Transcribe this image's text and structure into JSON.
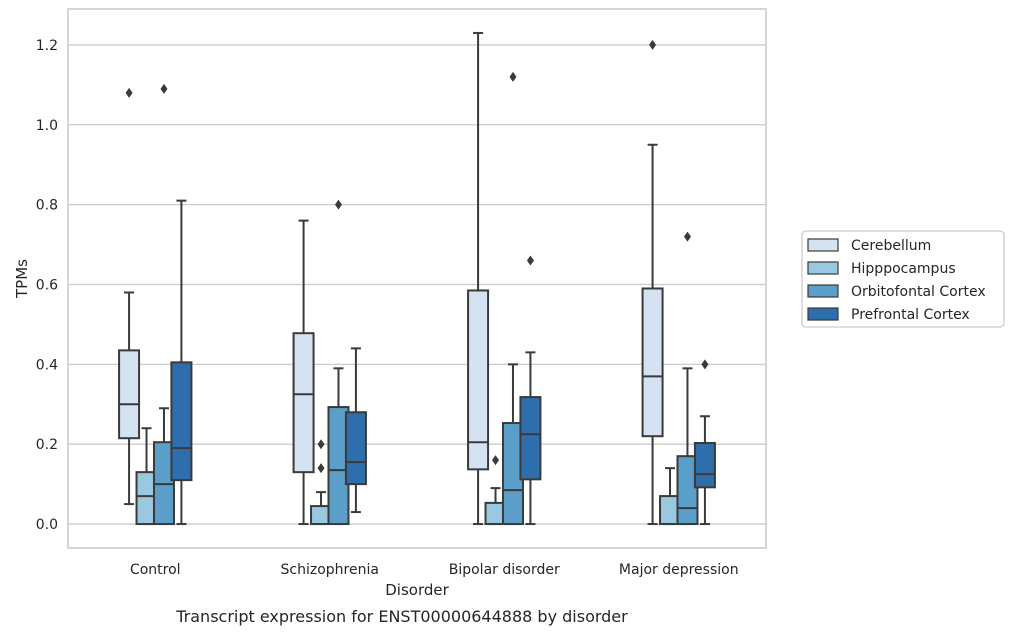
{
  "chart_data": {
    "type": "box",
    "title": "",
    "caption": "Transcript expression for ENST00000644888 by disorder",
    "xlabel": "Disorder",
    "ylabel": "TPMs",
    "ylim": [
      -0.06,
      1.29
    ],
    "yticks": [
      0.0,
      0.2,
      0.4,
      0.6,
      0.8,
      1.0,
      1.2
    ],
    "ytick_labels": [
      "0.0",
      "0.2",
      "0.4",
      "0.6",
      "0.8",
      "1.0",
      "1.2"
    ],
    "grid": "horizontal",
    "legend_position": "right",
    "categories": [
      "Control",
      "Schizophrenia",
      "Bipolar disorder",
      "Major depression"
    ],
    "series": [
      {
        "name": "Cerebellum",
        "color": "#d4e2f1",
        "boxes": [
          {
            "whisker_low": 0.05,
            "q1": 0.215,
            "median": 0.3,
            "q3": 0.435,
            "whisker_high": 0.58,
            "outliers": [
              1.08
            ]
          },
          {
            "whisker_low": 0.0,
            "q1": 0.13,
            "median": 0.325,
            "q3": 0.478,
            "whisker_high": 0.76,
            "outliers": []
          },
          {
            "whisker_low": 0.0,
            "q1": 0.137,
            "median": 0.205,
            "q3": 0.585,
            "whisker_high": 1.23,
            "outliers": []
          },
          {
            "whisker_low": 0.0,
            "q1": 0.22,
            "median": 0.37,
            "q3": 0.59,
            "whisker_high": 0.95,
            "outliers": [
              1.2
            ]
          }
        ]
      },
      {
        "name": "Hipppocampus",
        "color": "#9ac8e0",
        "boxes": [
          {
            "whisker_low": 0.0,
            "q1": 0.0,
            "median": 0.07,
            "q3": 0.13,
            "whisker_high": 0.24,
            "outliers": []
          },
          {
            "whisker_low": 0.0,
            "q1": 0.0,
            "median": 0.0,
            "q3": 0.045,
            "whisker_high": 0.08,
            "outliers": [
              0.14,
              0.2
            ]
          },
          {
            "whisker_low": 0.0,
            "q1": 0.0,
            "median": 0.0,
            "q3": 0.053,
            "whisker_high": 0.09,
            "outliers": [
              0.16
            ]
          },
          {
            "whisker_low": 0.0,
            "q1": 0.0,
            "median": 0.0,
            "q3": 0.07,
            "whisker_high": 0.14,
            "outliers": []
          }
        ]
      },
      {
        "name": "Orbitofontal Cortex",
        "color": "#5a9ec9",
        "boxes": [
          {
            "whisker_low": 0.0,
            "q1": 0.0,
            "median": 0.1,
            "q3": 0.205,
            "whisker_high": 0.29,
            "outliers": [
              1.09
            ]
          },
          {
            "whisker_low": 0.0,
            "q1": 0.0,
            "median": 0.135,
            "q3": 0.293,
            "whisker_high": 0.39,
            "outliers": [
              0.8
            ]
          },
          {
            "whisker_low": 0.0,
            "q1": 0.0,
            "median": 0.085,
            "q3": 0.253,
            "whisker_high": 0.4,
            "outliers": [
              1.12
            ]
          },
          {
            "whisker_low": 0.0,
            "q1": 0.0,
            "median": 0.04,
            "q3": 0.17,
            "whisker_high": 0.39,
            "outliers": [
              0.72
            ]
          }
        ]
      },
      {
        "name": "Prefrontal Cortex",
        "color": "#2e6ead",
        "boxes": [
          {
            "whisker_low": 0.0,
            "q1": 0.11,
            "median": 0.19,
            "q3": 0.405,
            "whisker_high": 0.81,
            "outliers": []
          },
          {
            "whisker_low": 0.03,
            "q1": 0.1,
            "median": 0.155,
            "q3": 0.28,
            "whisker_high": 0.44,
            "outliers": []
          },
          {
            "whisker_low": 0.0,
            "q1": 0.112,
            "median": 0.225,
            "q3": 0.318,
            "whisker_high": 0.43,
            "outliers": [
              0.66
            ]
          },
          {
            "whisker_low": 0.0,
            "q1": 0.092,
            "median": 0.125,
            "q3": 0.203,
            "whisker_high": 0.27,
            "outliers": [
              0.4
            ]
          }
        ]
      }
    ]
  }
}
